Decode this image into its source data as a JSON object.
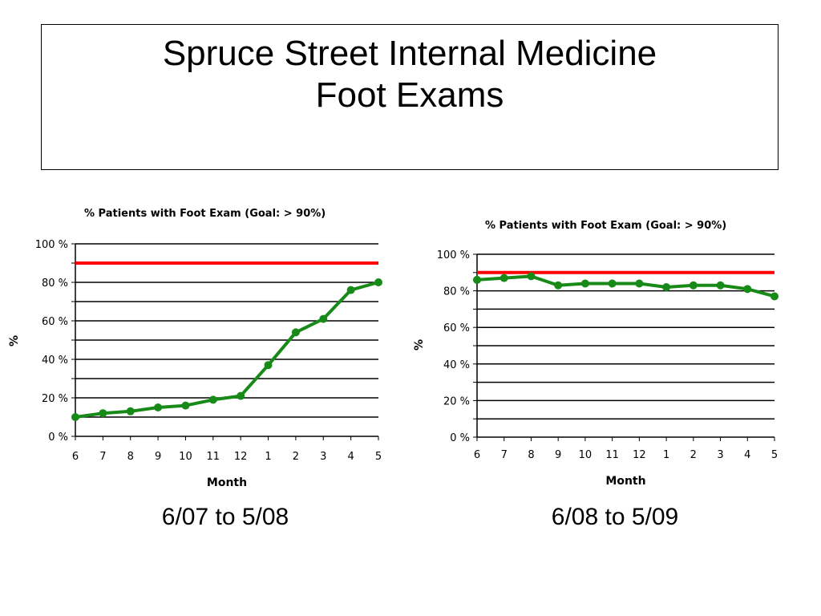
{
  "slide": {
    "title_line1": "Spruce Street Internal Medicine",
    "title_line2": "Foot Exams"
  },
  "colors": {
    "series": "#178a17",
    "goal": "#ff0000",
    "grid": "#000000",
    "background": "#ffffff"
  },
  "chart_data": [
    {
      "type": "line",
      "title": "% Patients with Foot Exam (Goal: > 90%)",
      "xlabel": "Month",
      "ylabel": "%",
      "categories": [
        "6",
        "7",
        "8",
        "9",
        "10",
        "11",
        "12",
        "1",
        "2",
        "3",
        "4",
        "5"
      ],
      "ylim": [
        0,
        100
      ],
      "yticks": [
        "0 %",
        "20 %",
        "40 %",
        "60 %",
        "80 %",
        "100 %"
      ],
      "goal": 90,
      "grid": true,
      "series": [
        {
          "values": [
            10,
            12,
            13,
            15,
            16,
            19,
            21,
            37,
            54,
            61,
            76,
            80
          ]
        }
      ],
      "caption": "6/07 to 5/08"
    },
    {
      "type": "line",
      "title": "% Patients with Foot Exam (Goal: > 90%)",
      "xlabel": "Month",
      "ylabel": "%",
      "categories": [
        "6",
        "7",
        "8",
        "9",
        "10",
        "11",
        "12",
        "1",
        "2",
        "3",
        "4",
        "5"
      ],
      "ylim": [
        0,
        100
      ],
      "yticks": [
        "0 %",
        "20 %",
        "40 %",
        "60 %",
        "80 %",
        "100 %"
      ],
      "goal": 90,
      "grid": true,
      "series": [
        {
          "values": [
            86,
            87,
            88,
            83,
            84,
            84,
            84,
            82,
            83,
            83,
            81,
            77
          ]
        }
      ],
      "caption": "6/08 to 5/09"
    }
  ]
}
